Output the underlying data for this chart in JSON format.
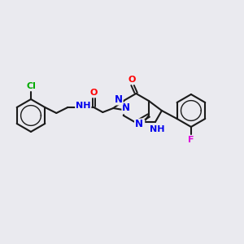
{
  "bg_color": "#eaeaef",
  "bond_color": "#1a1a1a",
  "atom_colors": {
    "O": "#ff0000",
    "N": "#0000ee",
    "NH": "#0000ee",
    "Cl": "#00aa00",
    "F": "#dd00dd"
  },
  "font_size": 8.0
}
